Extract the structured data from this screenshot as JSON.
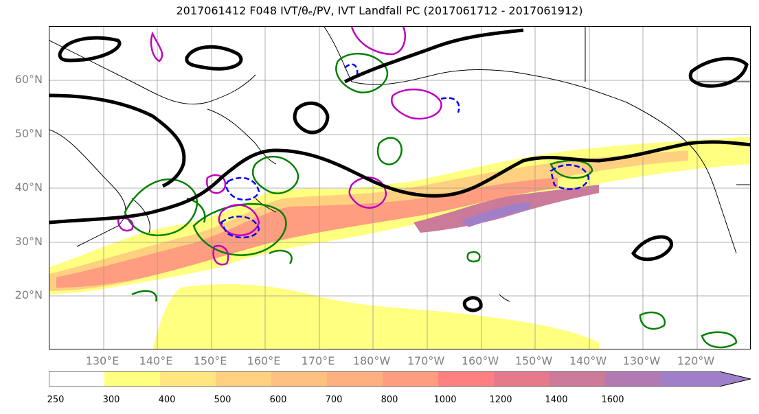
{
  "title": "2017061412 F048 IVT/θₑ/PV, IVT Landfall PC (2017061712 - 2017061912)",
  "map": {
    "lat_labels": [
      "60°N",
      "50°N",
      "40°N",
      "30°N",
      "20°N"
    ],
    "lon_labels": [
      "130°E",
      "140°E",
      "150°E",
      "160°E",
      "170°E",
      "180°W",
      "170°W",
      "160°W",
      "150°W",
      "140°W",
      "130°W",
      "120°W"
    ],
    "grid": true
  },
  "colorbar": {
    "ticks": [
      "250",
      "300",
      "400",
      "500",
      "600",
      "700",
      "800",
      "1000",
      "1200",
      "1400",
      "1600"
    ],
    "colors": [
      "#ffffff",
      "#ffff80",
      "#ffe680",
      "#ffd080",
      "#ffc080",
      "#ffb080",
      "#ff9d80",
      "#ff8080",
      "#e67a8c",
      "#cc7a99",
      "#b27ab3",
      "#9f80c8"
    ]
  }
}
